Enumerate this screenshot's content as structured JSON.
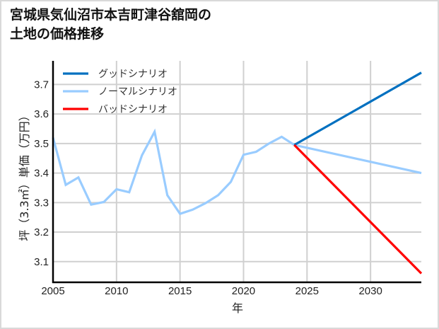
{
  "header": {
    "title_line1": "宮城県気仙沼市本吉町津谷舘岡の",
    "title_line2": "土地の価格推移"
  },
  "chart_data": {
    "type": "line",
    "title": "宮城県気仙沼市本吉町津谷舘岡の土地の価格推移",
    "xlabel": "年",
    "ylabel": "坪（3.3㎡）単価（万円）",
    "xlim": [
      2005,
      2034
    ],
    "ylim": [
      3.03,
      3.78
    ],
    "x_ticks": [
      2005,
      2010,
      2015,
      2020,
      2025,
      2030
    ],
    "y_ticks": [
      3.1,
      3.2,
      3.3,
      3.4,
      3.5,
      3.6,
      3.7
    ],
    "grid": true,
    "legend_position": "upper left",
    "series": [
      {
        "name": "グッドシナリオ",
        "color": "#0070c0",
        "x": [
          2024,
          2034
        ],
        "values": [
          3.495,
          3.74
        ]
      },
      {
        "name": "ノーマルシナリオ",
        "color": "#99ccff",
        "x": [
          2005,
          2006,
          2007,
          2008,
          2009,
          2010,
          2011,
          2012,
          2013,
          2014,
          2015,
          2016,
          2017,
          2018,
          2019,
          2020,
          2021,
          2022,
          2023,
          2024,
          2034
        ],
        "values": [
          3.52,
          3.36,
          3.385,
          3.293,
          3.302,
          3.345,
          3.335,
          3.46,
          3.54,
          3.325,
          3.262,
          3.276,
          3.298,
          3.325,
          3.37,
          3.462,
          3.472,
          3.5,
          3.523,
          3.495,
          3.4
        ]
      },
      {
        "name": "バッドシナリオ",
        "color": "#ff0000",
        "x": [
          2024,
          2034
        ],
        "values": [
          3.495,
          3.06
        ]
      }
    ]
  }
}
